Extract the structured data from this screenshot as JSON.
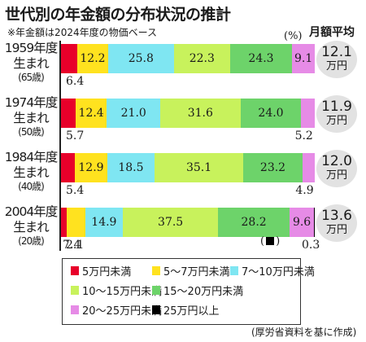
{
  "title": "世代別の年金額の分布状況の推計",
  "subtitle": "※年金額は2024年度の物価ベース",
  "unit": "(%)",
  "avg_header": "月額平均",
  "source": "(厚労省資料を基に作成)",
  "note": "(■)",
  "colors": [
    "#e8002a",
    "#ffe21f",
    "#7fe6f2",
    "#c8f25c",
    "#6dd36a",
    "#e68be6",
    "#000000"
  ],
  "chart_data": {
    "type": "bar",
    "orientation": "horizontal",
    "stacked": true,
    "xlim": [
      0,
      100
    ],
    "categories": [
      {
        "year": "1959年度",
        "born": "生まれ",
        "age": "(65歳)",
        "avg": "12.1",
        "avg_unit": "万円"
      },
      {
        "year": "1974年度",
        "born": "生まれ",
        "age": "(50歳)",
        "avg": "11.9",
        "avg_unit": "万円"
      },
      {
        "year": "1984年度",
        "born": "生まれ",
        "age": "(40歳)",
        "avg": "12.0",
        "avg_unit": "万円"
      },
      {
        "year": "2004年度",
        "born": "生まれ",
        "age": "(20歳)",
        "avg": "13.6",
        "avg_unit": "万円"
      }
    ],
    "series": [
      {
        "name": "5万円未満",
        "values": [
          6.4,
          5.7,
          5.4,
          2.1
        ],
        "labels": [
          "6.4",
          "5.7",
          "5.4",
          "2.1"
        ]
      },
      {
        "name": "5～7万円未満",
        "values": [
          12.2,
          12.4,
          12.9,
          7.4
        ],
        "labels": [
          "12.2",
          "12.4",
          "12.9",
          "7.4"
        ]
      },
      {
        "name": "7～10万円未満",
        "values": [
          25.8,
          21.0,
          18.5,
          14.9
        ],
        "labels": [
          "25.8",
          "21.0",
          "18.5",
          "14.9"
        ]
      },
      {
        "name": "10～15万円未満",
        "values": [
          22.3,
          31.6,
          35.1,
          37.5
        ],
        "labels": [
          "22.3",
          "31.6",
          "35.1",
          "37.5"
        ]
      },
      {
        "name": "15～20万円未満",
        "values": [
          24.3,
          24.0,
          23.2,
          28.2
        ],
        "labels": [
          "24.3",
          "24.0",
          "23.2",
          "28.2"
        ]
      },
      {
        "name": "20～25万円未満",
        "values": [
          9.1,
          5.2,
          4.9,
          9.6
        ],
        "labels": [
          "9.1",
          "5.2",
          "4.9",
          "9.6"
        ]
      },
      {
        "name": "25万円以上",
        "values": [
          0,
          0,
          0,
          0.3
        ],
        "labels": [
          "",
          "",
          "",
          "0.3"
        ]
      }
    ],
    "legend": "bottom"
  }
}
